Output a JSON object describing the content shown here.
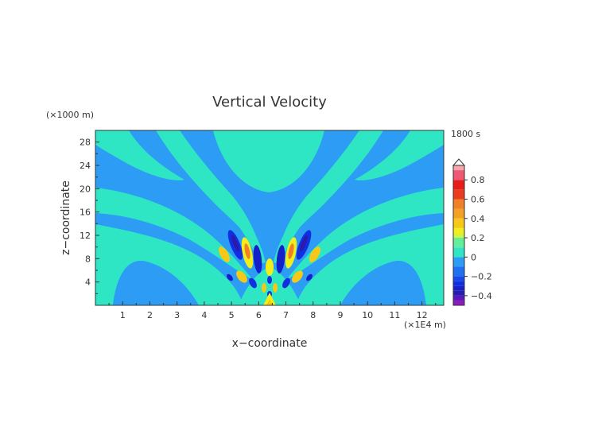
{
  "chart_data": {
    "type": "heatmap",
    "title": "Vertical Velocity",
    "xlabel": "x−coordinate",
    "ylabel": "z−coordinate",
    "x_unit": "(×1E4 m)",
    "y_unit": "(×1000 m)",
    "time_label": "1800 s",
    "xlim": [
      0,
      12.8
    ],
    "ylim": [
      0,
      30
    ],
    "x_ticks": [
      1,
      2,
      3,
      4,
      5,
      6,
      7,
      8,
      9,
      10,
      11,
      12
    ],
    "y_ticks": [
      4,
      8,
      12,
      16,
      20,
      24,
      28
    ],
    "colorbar": {
      "tick_labels": [
        "0.8",
        "0.6",
        "0.4",
        "0.2",
        "0",
        "−0.2",
        "−0.4"
      ],
      "tick_values": [
        0.8,
        0.6,
        0.4,
        0.2,
        0,
        -0.2,
        -0.4
      ],
      "levels": [
        {
          "value": -0.5,
          "color": "#8c1ac0"
        },
        {
          "value": -0.45,
          "color": "#5a18b8"
        },
        {
          "value": -0.4,
          "color": "#2b1ab0"
        },
        {
          "value": -0.35,
          "color": "#1520c8"
        },
        {
          "value": -0.3,
          "color": "#1030e0"
        },
        {
          "value": -0.25,
          "color": "#1848ea"
        },
        {
          "value": -0.2,
          "color": "#2070f0"
        },
        {
          "value": -0.1,
          "color": "#2c9cf4"
        },
        {
          "value": 0,
          "color": "#2ee6c4"
        },
        {
          "value": 0.1,
          "color": "#62ee9a"
        },
        {
          "value": 0.2,
          "color": "#d6f23a"
        },
        {
          "value": 0.25,
          "color": "#f2ee1a"
        },
        {
          "value": 0.3,
          "color": "#f6c818"
        },
        {
          "value": 0.4,
          "color": "#f4a022"
        },
        {
          "value": 0.5,
          "color": "#f08028"
        },
        {
          "value": 0.6,
          "color": "#ec3c20"
        },
        {
          "value": 0.7,
          "color": "#e81c18"
        },
        {
          "value": 0.8,
          "color": "#ee5a74"
        },
        {
          "value": 0.9,
          "color": "#f8a4ac"
        }
      ]
    },
    "colors": {
      "negative_weak": "#2c9cf4",
      "positive_weak": "#2ee6c4",
      "axis": "#333333"
    },
    "regions": [
      {
        "name": "background",
        "level": -0.1
      },
      {
        "name": "upper-central-dome",
        "level": 0.1
      },
      {
        "name": "side-bottom-lobes",
        "level": 0.1
      },
      {
        "name": "fan-bands",
        "level": 0.1
      },
      {
        "name": "strong-positive-cells",
        "level": 0.3
      },
      {
        "name": "strong-negative-cells",
        "level": -0.3
      }
    ]
  }
}
